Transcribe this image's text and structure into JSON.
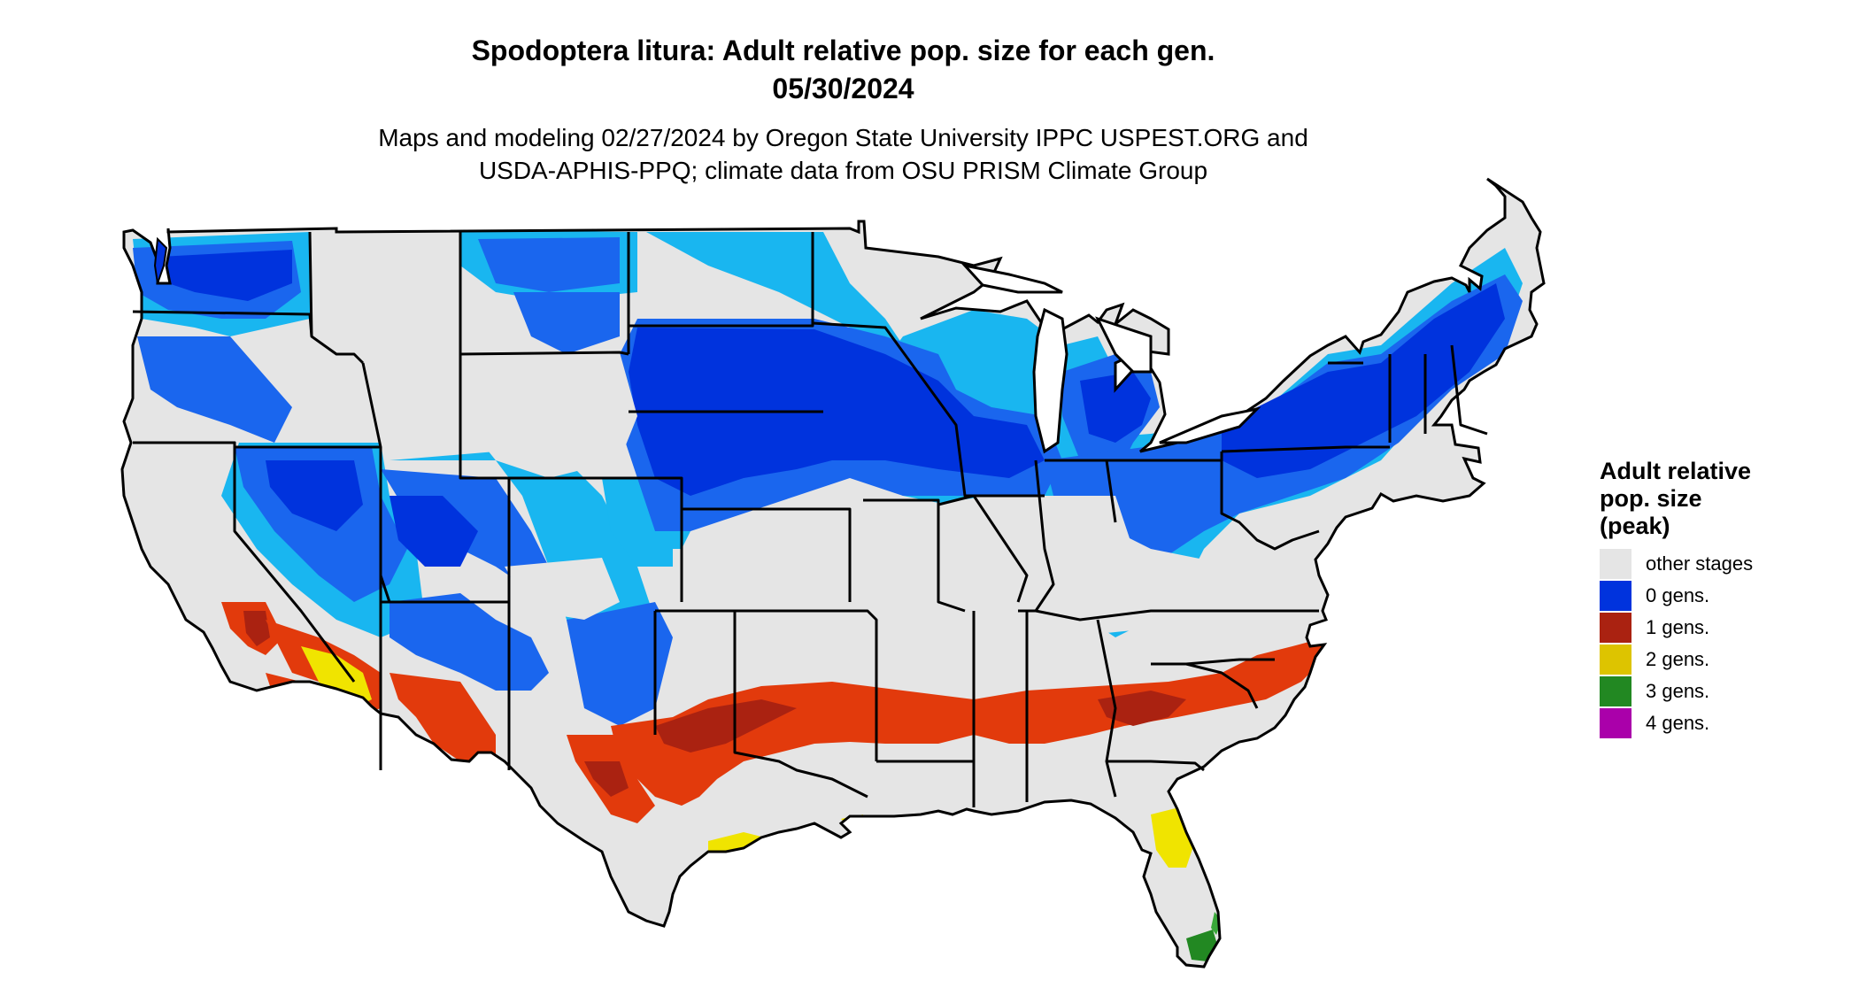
{
  "header": {
    "title_line1": "Spodoptera litura: Adult relative pop. size for each gen.",
    "title_line2": "05/30/2024",
    "subtitle_line1": "Maps and modeling 02/27/2024 by Oregon State University IPPC USPEST.ORG and",
    "subtitle_line2": "USDA-APHIS-PPQ; climate data from OSU PRISM Climate Group"
  },
  "legend": {
    "title": [
      "Adult relative",
      "pop. size",
      "(peak)"
    ],
    "items": [
      {
        "label": "other stages",
        "color": "#e5e5e5"
      },
      {
        "label": "0 gens.",
        "color": "#0033dd"
      },
      {
        "label": "1 gens.",
        "color": "#aa2211"
      },
      {
        "label": "2 gens.",
        "color": "#ddc400"
      },
      {
        "label": "3 gens.",
        "color": "#228822"
      },
      {
        "label": "4 gens.",
        "color": "#aa00aa"
      }
    ]
  },
  "map_colors": {
    "background_land": "#e5e5e5",
    "border": "#000000",
    "zero_gen_dark": "#0033dd",
    "zero_gen_mid": "#1a66ee",
    "zero_gen_light": "#19b6f0",
    "one_gen_orange": "#e23a0c",
    "one_gen_red": "#aa2211",
    "two_gen_yellow": "#f0e400",
    "three_gen_green": "#228822"
  }
}
